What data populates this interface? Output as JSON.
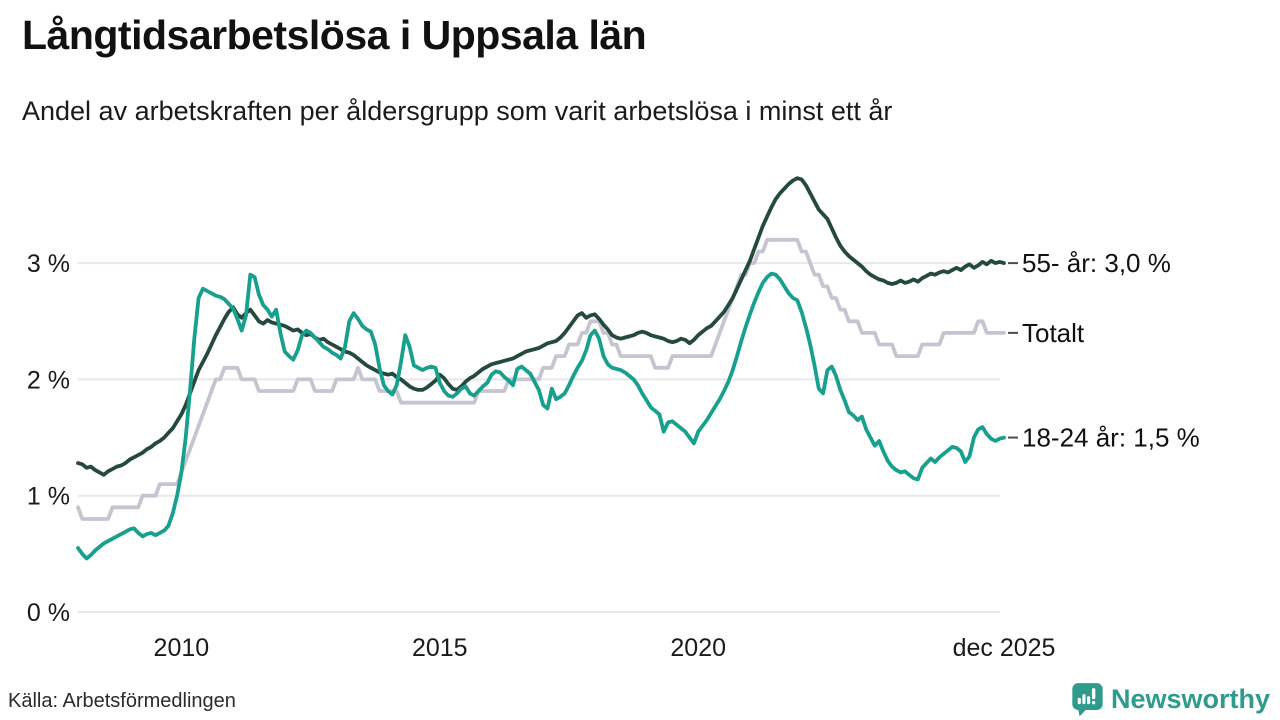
{
  "header": {
    "title": "Långtidsarbetslösa i Uppsala län",
    "subtitle": "Andel av arbetskraften per åldersgrupp som varit arbetslösa i minst ett år"
  },
  "footer": {
    "source": "Källa: Arbetsförmedlingen",
    "logo_text": "Newsworthy",
    "logo_color": "#2e9b8d"
  },
  "colors": {
    "grid": "#e8e8e8",
    "axis_text": "#1a1a1a",
    "end_label_text": "#111111",
    "tick_dash": "#4d4d4d"
  },
  "chart_data": {
    "type": "line",
    "x_start": "jan 2008",
    "x_end": "dec 2025",
    "x_interval": "monthly",
    "points_per_series": 216,
    "grid": "horizontal-only",
    "legend_position": "right-end-labels",
    "ylim": [
      0,
      3.9
    ],
    "y_ticks": [
      {
        "value": 0,
        "label": "0 %"
      },
      {
        "value": 1,
        "label": "1 %"
      },
      {
        "value": 2,
        "label": "2 %"
      },
      {
        "value": 3,
        "label": "3 %"
      }
    ],
    "x_ticks": [
      {
        "month_index": 24,
        "label": "2010"
      },
      {
        "month_index": 84,
        "label": "2015"
      },
      {
        "month_index": 144,
        "label": "2020"
      },
      {
        "month_index": 215,
        "label": "dec 2025"
      }
    ],
    "series": [
      {
        "name": "55- år",
        "end_label": "55- år: 3,0 %",
        "end_value_text": "3,0 %",
        "color": "#24493e",
        "zorder": 1,
        "values": [
          1.28,
          1.27,
          1.24,
          1.25,
          1.22,
          1.2,
          1.18,
          1.21,
          1.23,
          1.25,
          1.26,
          1.28,
          1.31,
          1.33,
          1.35,
          1.37,
          1.4,
          1.42,
          1.45,
          1.47,
          1.5,
          1.54,
          1.58,
          1.64,
          1.7,
          1.78,
          1.88,
          1.98,
          2.08,
          2.15,
          2.22,
          2.3,
          2.38,
          2.45,
          2.52,
          2.58,
          2.62,
          2.56,
          2.53,
          2.57,
          2.6,
          2.55,
          2.5,
          2.48,
          2.51,
          2.49,
          2.48,
          2.47,
          2.46,
          2.44,
          2.42,
          2.43,
          2.4,
          2.38,
          2.39,
          2.36,
          2.34,
          2.35,
          2.32,
          2.3,
          2.28,
          2.26,
          2.24,
          2.23,
          2.21,
          2.18,
          2.15,
          2.12,
          2.1,
          2.08,
          2.06,
          2.05,
          2.04,
          2.05,
          2.02,
          2.0,
          1.97,
          1.94,
          1.92,
          1.91,
          1.91,
          1.93,
          1.96,
          1.99,
          2.04,
          2.01,
          1.96,
          1.92,
          1.91,
          1.94,
          1.98,
          2.01,
          2.03,
          2.06,
          2.09,
          2.11,
          2.13,
          2.14,
          2.15,
          2.16,
          2.17,
          2.18,
          2.2,
          2.22,
          2.24,
          2.25,
          2.26,
          2.27,
          2.29,
          2.31,
          2.32,
          2.33,
          2.36,
          2.4,
          2.45,
          2.5,
          2.55,
          2.57,
          2.53,
          2.55,
          2.56,
          2.52,
          2.47,
          2.43,
          2.38,
          2.36,
          2.35,
          2.36,
          2.37,
          2.38,
          2.4,
          2.41,
          2.4,
          2.38,
          2.37,
          2.36,
          2.35,
          2.33,
          2.32,
          2.33,
          2.35,
          2.34,
          2.31,
          2.34,
          2.38,
          2.41,
          2.44,
          2.46,
          2.5,
          2.54,
          2.58,
          2.64,
          2.7,
          2.78,
          2.86,
          2.94,
          3.02,
          3.12,
          3.22,
          3.32,
          3.4,
          3.48,
          3.55,
          3.6,
          3.64,
          3.68,
          3.71,
          3.73,
          3.72,
          3.67,
          3.6,
          3.53,
          3.46,
          3.42,
          3.38,
          3.3,
          3.22,
          3.15,
          3.1,
          3.06,
          3.03,
          3.0,
          2.97,
          2.93,
          2.9,
          2.88,
          2.86,
          2.85,
          2.83,
          2.82,
          2.83,
          2.85,
          2.83,
          2.84,
          2.86,
          2.84,
          2.87,
          2.89,
          2.91,
          2.9,
          2.92,
          2.93,
          2.92,
          2.94,
          2.96,
          2.94,
          2.97,
          2.99,
          2.96,
          2.98,
          3.01,
          2.99,
          3.02,
          3.0,
          3.01,
          3.0
        ]
      },
      {
        "name": "Totalt",
        "end_label": "Totalt",
        "end_value_text": "",
        "color": "#c6c4d1",
        "zorder": 0,
        "values": [
          0.9,
          0.8,
          0.8,
          0.8,
          0.8,
          0.8,
          0.8,
          0.8,
          0.9,
          0.9,
          0.9,
          0.9,
          0.9,
          0.9,
          0.9,
          1.0,
          1.0,
          1.0,
          1.0,
          1.1,
          1.1,
          1.1,
          1.1,
          1.1,
          1.2,
          1.3,
          1.4,
          1.5,
          1.6,
          1.7,
          1.8,
          1.9,
          2.0,
          2.0,
          2.1,
          2.1,
          2.1,
          2.1,
          2.0,
          2.0,
          2.0,
          2.0,
          1.9,
          1.9,
          1.9,
          1.9,
          1.9,
          1.9,
          1.9,
          1.9,
          1.9,
          2.0,
          2.0,
          2.0,
          2.0,
          1.9,
          1.9,
          1.9,
          1.9,
          1.9,
          2.0,
          2.0,
          2.0,
          2.0,
          2.0,
          2.1,
          2.0,
          2.0,
          2.0,
          2.0,
          1.9,
          1.9,
          1.9,
          1.9,
          1.9,
          1.8,
          1.8,
          1.8,
          1.8,
          1.8,
          1.8,
          1.8,
          1.8,
          1.8,
          1.8,
          1.8,
          1.8,
          1.8,
          1.8,
          1.8,
          1.8,
          1.8,
          1.8,
          1.9,
          1.9,
          1.9,
          1.9,
          1.9,
          1.9,
          1.9,
          2.0,
          2.0,
          2.0,
          2.0,
          2.0,
          2.0,
          2.0,
          2.0,
          2.1,
          2.1,
          2.1,
          2.2,
          2.2,
          2.2,
          2.3,
          2.3,
          2.3,
          2.4,
          2.4,
          2.5,
          2.5,
          2.5,
          2.4,
          2.4,
          2.3,
          2.3,
          2.2,
          2.2,
          2.2,
          2.2,
          2.2,
          2.2,
          2.2,
          2.2,
          2.1,
          2.1,
          2.1,
          2.1,
          2.2,
          2.2,
          2.2,
          2.2,
          2.2,
          2.2,
          2.2,
          2.2,
          2.2,
          2.2,
          2.3,
          2.4,
          2.5,
          2.6,
          2.7,
          2.8,
          2.9,
          2.9,
          3.0,
          3.0,
          3.1,
          3.1,
          3.2,
          3.2,
          3.2,
          3.2,
          3.2,
          3.2,
          3.2,
          3.2,
          3.1,
          3.1,
          3.0,
          2.9,
          2.9,
          2.8,
          2.8,
          2.7,
          2.7,
          2.6,
          2.6,
          2.5,
          2.5,
          2.5,
          2.4,
          2.4,
          2.4,
          2.4,
          2.3,
          2.3,
          2.3,
          2.3,
          2.2,
          2.2,
          2.2,
          2.2,
          2.2,
          2.2,
          2.3,
          2.3,
          2.3,
          2.3,
          2.3,
          2.4,
          2.4,
          2.4,
          2.4,
          2.4,
          2.4,
          2.4,
          2.4,
          2.5,
          2.5,
          2.4,
          2.4,
          2.4,
          2.4,
          2.4
        ]
      },
      {
        "name": "18-24 år",
        "end_label": "18-24 år: 1,5 %",
        "end_value_text": "1,5 %",
        "color": "#17a08e",
        "zorder": 2,
        "values": [
          0.55,
          0.5,
          0.46,
          0.49,
          0.53,
          0.56,
          0.59,
          0.61,
          0.63,
          0.65,
          0.67,
          0.69,
          0.71,
          0.72,
          0.68,
          0.65,
          0.67,
          0.68,
          0.66,
          0.68,
          0.7,
          0.74,
          0.85,
          1.0,
          1.2,
          1.5,
          1.9,
          2.35,
          2.7,
          2.78,
          2.76,
          2.74,
          2.72,
          2.71,
          2.69,
          2.65,
          2.61,
          2.52,
          2.42,
          2.55,
          2.9,
          2.88,
          2.73,
          2.64,
          2.6,
          2.54,
          2.6,
          2.4,
          2.24,
          2.2,
          2.17,
          2.25,
          2.38,
          2.42,
          2.4,
          2.36,
          2.32,
          2.28,
          2.26,
          2.23,
          2.21,
          2.18,
          2.28,
          2.5,
          2.57,
          2.52,
          2.46,
          2.43,
          2.41,
          2.3,
          2.1,
          1.95,
          1.9,
          1.87,
          1.95,
          2.15,
          2.38,
          2.28,
          2.12,
          2.1,
          2.08,
          2.1,
          2.11,
          2.1,
          1.97,
          1.9,
          1.86,
          1.85,
          1.88,
          1.92,
          1.94,
          1.88,
          1.86,
          1.9,
          1.94,
          1.97,
          2.04,
          2.07,
          2.06,
          2.02,
          1.99,
          1.95,
          2.09,
          2.11,
          2.08,
          2.05,
          1.98,
          1.91,
          1.78,
          1.75,
          1.92,
          1.83,
          1.85,
          1.88,
          1.95,
          2.03,
          2.1,
          2.16,
          2.25,
          2.38,
          2.42,
          2.35,
          2.2,
          2.13,
          2.1,
          2.09,
          2.08,
          2.06,
          2.03,
          2.0,
          1.95,
          1.88,
          1.82,
          1.76,
          1.73,
          1.7,
          1.55,
          1.63,
          1.64,
          1.61,
          1.58,
          1.55,
          1.5,
          1.45,
          1.55,
          1.6,
          1.65,
          1.71,
          1.77,
          1.83,
          1.9,
          1.98,
          2.08,
          2.2,
          2.33,
          2.45,
          2.56,
          2.66,
          2.75,
          2.83,
          2.88,
          2.91,
          2.9,
          2.86,
          2.8,
          2.74,
          2.7,
          2.68,
          2.58,
          2.45,
          2.3,
          2.12,
          1.92,
          1.88,
          2.08,
          2.11,
          2.03,
          1.91,
          1.82,
          1.72,
          1.69,
          1.65,
          1.68,
          1.57,
          1.5,
          1.43,
          1.47,
          1.38,
          1.3,
          1.25,
          1.22,
          1.2,
          1.21,
          1.18,
          1.15,
          1.14,
          1.24,
          1.28,
          1.32,
          1.29,
          1.33,
          1.36,
          1.39,
          1.42,
          1.41,
          1.38,
          1.29,
          1.34,
          1.5,
          1.57,
          1.59,
          1.53,
          1.49,
          1.47,
          1.49,
          1.5
        ]
      }
    ]
  }
}
